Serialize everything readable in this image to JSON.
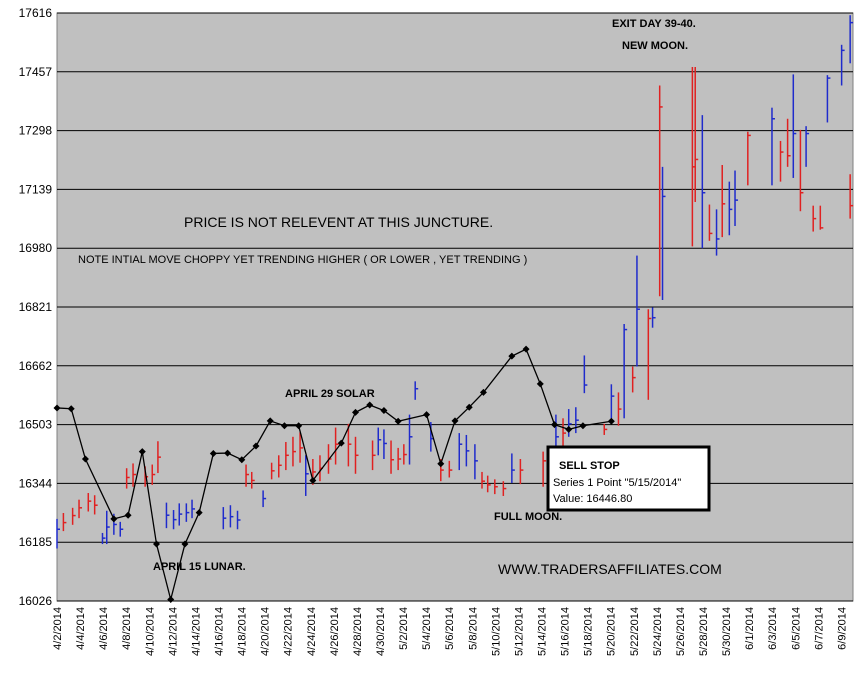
{
  "chart_data": {
    "type": "ohlc",
    "ylim": [
      16026,
      17616
    ],
    "y_ticks": [
      16026,
      16185,
      16344,
      16503,
      16662,
      16821,
      16980,
      17139,
      17298,
      17457,
      17616
    ],
    "categories": [
      "4/2/2014",
      "4/3/2014",
      "4/4/2014",
      "4/5/2014",
      "4/6/2014",
      "4/7/2014",
      "4/8/2014",
      "4/9/2014",
      "4/10/2014",
      "4/11/2014",
      "4/12/2014",
      "4/13/2014",
      "4/14/2014",
      "4/15/2014",
      "4/16/2014",
      "4/17/2014",
      "4/18/2014",
      "4/19/2014",
      "4/20/2014",
      "4/21/2014",
      "4/22/2014",
      "4/23/2014",
      "4/24/2014",
      "4/25/2014",
      "4/26/2014",
      "4/27/2014",
      "4/28/2014",
      "4/29/2014",
      "4/30/2014",
      "5/1/2014",
      "5/2/2014",
      "5/3/2014",
      "5/4/2014",
      "5/5/2014",
      "5/6/2014",
      "5/7/2014",
      "5/8/2014",
      "5/9/2014",
      "5/10/2014",
      "5/11/2014",
      "5/12/2014",
      "5/13/2014",
      "5/14/2014",
      "5/15/2014",
      "5/16/2014",
      "5/17/2014",
      "5/18/2014",
      "5/19/2014",
      "5/20/2014",
      "5/21/2014",
      "5/22/2014",
      "5/23/2014",
      "5/24/2014",
      "5/25/2014",
      "5/26/2014",
      "5/27/2014",
      "5/28/2014",
      "5/29/2014",
      "5/30/2014",
      "5/31/2014",
      "6/1/2014",
      "6/2/2014",
      "6/3/2014",
      "6/4/2014",
      "6/5/2014",
      "6/6/2014",
      "6/7/2014",
      "6/8/2014",
      "6/9/2014",
      "6/10/2014"
    ],
    "x_label_step": 2,
    "series": [
      {
        "name": "Series 1",
        "style": "line-markers",
        "color": "#000000",
        "points": [
          {
            "x": 0,
            "y": 16548
          },
          {
            "x": 1,
            "y": 16546
          },
          {
            "x": 2,
            "y": 16410
          },
          {
            "x": 4,
            "y": 16248
          },
          {
            "x": 5,
            "y": 16258
          },
          {
            "x": 6,
            "y": 16430
          },
          {
            "x": 7,
            "y": 16180
          },
          {
            "x": 8,
            "y": 16030
          },
          {
            "x": 9,
            "y": 16180
          },
          {
            "x": 10,
            "y": 16265
          },
          {
            "x": 11,
            "y": 16425
          },
          {
            "x": 12,
            "y": 16426
          },
          {
            "x": 13,
            "y": 16408
          },
          {
            "x": 14,
            "y": 16445
          },
          {
            "x": 15,
            "y": 16513
          },
          {
            "x": 16,
            "y": 16500
          },
          {
            "x": 17,
            "y": 16500
          },
          {
            "x": 18,
            "y": 16352
          },
          {
            "x": 20,
            "y": 16453
          },
          {
            "x": 21,
            "y": 16536
          },
          {
            "x": 22,
            "y": 16556
          },
          {
            "x": 23,
            "y": 16541
          },
          {
            "x": 24,
            "y": 16512
          },
          {
            "x": 26,
            "y": 16530
          },
          {
            "x": 27,
            "y": 16397
          },
          {
            "x": 28,
            "y": 16513
          },
          {
            "x": 29,
            "y": 16550
          },
          {
            "x": 30,
            "y": 16590
          },
          {
            "x": 32,
            "y": 16688
          },
          {
            "x": 33,
            "y": 16707
          },
          {
            "x": 34,
            "y": 16613
          },
          {
            "x": 35,
            "y": 16503
          },
          {
            "x": 36,
            "y": 16490
          },
          {
            "x": 37,
            "y": 16500
          },
          {
            "x": 39,
            "y": 16512
          }
        ]
      }
    ],
    "ohlc_bars": [
      {
        "x": 0,
        "low": 16168,
        "high": 16248,
        "close": 16220,
        "color": "blue"
      },
      {
        "x": 0.45,
        "low": 16215,
        "high": 16264,
        "close": 16238,
        "color": "red"
      },
      {
        "x": 1.1,
        "low": 16232,
        "high": 16278,
        "close": 16257,
        "color": "red"
      },
      {
        "x": 1.55,
        "low": 16250,
        "high": 16300,
        "close": 16278,
        "color": "red"
      },
      {
        "x": 2.2,
        "low": 16268,
        "high": 16318,
        "close": 16296,
        "color": "red"
      },
      {
        "x": 2.65,
        "low": 16260,
        "high": 16312,
        "close": 16285,
        "color": "red"
      },
      {
        "x": 3.2,
        "low": 16180,
        "high": 16210,
        "close": 16196,
        "color": "blue"
      },
      {
        "x": 3.5,
        "low": 16180,
        "high": 16270,
        "close": 16226,
        "color": "blue"
      },
      {
        "x": 4.0,
        "low": 16205,
        "high": 16262,
        "close": 16233,
        "color": "blue"
      },
      {
        "x": 4.45,
        "low": 16200,
        "high": 16240,
        "close": 16220,
        "color": "blue"
      },
      {
        "x": 4.9,
        "low": 16330,
        "high": 16385,
        "close": 16360,
        "color": "red"
      },
      {
        "x": 5.35,
        "low": 16335,
        "high": 16398,
        "close": 16368,
        "color": "red"
      },
      {
        "x": 6.2,
        "low": 16335,
        "high": 16390,
        "close": 16362,
        "color": "red"
      },
      {
        "x": 6.7,
        "low": 16340,
        "high": 16395,
        "close": 16368,
        "color": "red"
      },
      {
        "x": 7.1,
        "low": 16372,
        "high": 16458,
        "close": 16415,
        "color": "red"
      },
      {
        "x": 7.7,
        "low": 16223,
        "high": 16292,
        "close": 16258,
        "color": "blue"
      },
      {
        "x": 8.2,
        "low": 16220,
        "high": 16272,
        "close": 16246,
        "color": "blue"
      },
      {
        "x": 8.6,
        "low": 16230,
        "high": 16290,
        "close": 16261,
        "color": "blue"
      },
      {
        "x": 9.1,
        "low": 16240,
        "high": 16290,
        "close": 16265,
        "color": "blue"
      },
      {
        "x": 9.5,
        "low": 16250,
        "high": 16300,
        "close": 16275,
        "color": "blue"
      },
      {
        "x": 11.7,
        "low": 16220,
        "high": 16280,
        "close": 16250,
        "color": "blue"
      },
      {
        "x": 12.2,
        "low": 16225,
        "high": 16285,
        "close": 16254,
        "color": "blue"
      },
      {
        "x": 12.7,
        "low": 16220,
        "high": 16270,
        "close": 16245,
        "color": "blue"
      },
      {
        "x": 13.3,
        "low": 16335,
        "high": 16395,
        "close": 16368,
        "color": "red"
      },
      {
        "x": 13.7,
        "low": 16330,
        "high": 16375,
        "close": 16352,
        "color": "red"
      },
      {
        "x": 14.5,
        "low": 16280,
        "high": 16325,
        "close": 16303,
        "color": "blue"
      },
      {
        "x": 15.1,
        "low": 16355,
        "high": 16400,
        "close": 16378,
        "color": "red"
      },
      {
        "x": 15.6,
        "low": 16360,
        "high": 16420,
        "close": 16393,
        "color": "red"
      },
      {
        "x": 16.1,
        "low": 16380,
        "high": 16456,
        "close": 16420,
        "color": "red"
      },
      {
        "x": 16.6,
        "low": 16390,
        "high": 16470,
        "close": 16430,
        "color": "red"
      },
      {
        "x": 17.1,
        "low": 16400,
        "high": 16482,
        "close": 16440,
        "color": "red"
      },
      {
        "x": 17.5,
        "low": 16310,
        "high": 16420,
        "close": 16370,
        "color": "blue"
      },
      {
        "x": 18.0,
        "low": 16340,
        "high": 16410,
        "close": 16375,
        "color": "red"
      },
      {
        "x": 18.5,
        "low": 16350,
        "high": 16420,
        "close": 16385,
        "color": "red"
      },
      {
        "x": 19.1,
        "low": 16370,
        "high": 16450,
        "close": 16410,
        "color": "red"
      },
      {
        "x": 19.6,
        "low": 16395,
        "high": 16495,
        "close": 16450,
        "color": "red"
      },
      {
        "x": 20.5,
        "low": 16390,
        "high": 16505,
        "close": 16450,
        "color": "red"
      },
      {
        "x": 21.0,
        "low": 16370,
        "high": 16470,
        "close": 16420,
        "color": "red"
      },
      {
        "x": 22.2,
        "low": 16380,
        "high": 16460,
        "close": 16420,
        "color": "red"
      },
      {
        "x": 22.6,
        "low": 16420,
        "high": 16495,
        "close": 16462,
        "color": "blue"
      },
      {
        "x": 23.0,
        "low": 16410,
        "high": 16490,
        "close": 16452,
        "color": "blue"
      },
      {
        "x": 23.5,
        "low": 16370,
        "high": 16460,
        "close": 16408,
        "color": "red"
      },
      {
        "x": 24.0,
        "low": 16380,
        "high": 16440,
        "close": 16410,
        "color": "red"
      },
      {
        "x": 24.4,
        "low": 16395,
        "high": 16450,
        "close": 16422,
        "color": "red"
      },
      {
        "x": 24.8,
        "low": 16395,
        "high": 16530,
        "close": 16470,
        "color": "blue"
      },
      {
        "x": 25.2,
        "low": 16570,
        "high": 16620,
        "close": 16600,
        "color": "blue"
      },
      {
        "x": 26.3,
        "low": 16430,
        "high": 16510,
        "close": 16465,
        "color": "blue"
      },
      {
        "x": 27.0,
        "low": 16350,
        "high": 16410,
        "close": 16380,
        "color": "red"
      },
      {
        "x": 27.6,
        "low": 16360,
        "high": 16405,
        "close": 16380,
        "color": "red"
      },
      {
        "x": 28.3,
        "low": 16380,
        "high": 16480,
        "close": 16450,
        "color": "blue"
      },
      {
        "x": 28.8,
        "low": 16390,
        "high": 16475,
        "close": 16432,
        "color": "blue"
      },
      {
        "x": 29.4,
        "low": 16355,
        "high": 16450,
        "close": 16405,
        "color": "blue"
      },
      {
        "x": 29.9,
        "low": 16330,
        "high": 16375,
        "close": 16350,
        "color": "red"
      },
      {
        "x": 30.3,
        "low": 16320,
        "high": 16365,
        "close": 16340,
        "color": "red"
      },
      {
        "x": 30.8,
        "low": 16315,
        "high": 16355,
        "close": 16335,
        "color": "red"
      },
      {
        "x": 31.4,
        "low": 16310,
        "high": 16350,
        "close": 16330,
        "color": "red"
      },
      {
        "x": 32.0,
        "low": 16345,
        "high": 16425,
        "close": 16380,
        "color": "blue"
      },
      {
        "x": 32.6,
        "low": 16342,
        "high": 16410,
        "close": 16380,
        "color": "red"
      },
      {
        "x": 34.2,
        "low": 16335,
        "high": 16430,
        "close": 16405,
        "color": "red"
      },
      {
        "x": 34.7,
        "low": 16380,
        "high": 16440,
        "close": 16410,
        "color": "red"
      },
      {
        "x": 35.1,
        "low": 16400,
        "high": 16530,
        "close": 16470,
        "color": "blue"
      },
      {
        "x": 35.6,
        "low": 16440,
        "high": 16520,
        "close": 16480,
        "color": "red"
      },
      {
        "x": 36.0,
        "low": 16470,
        "high": 16545,
        "close": 16505,
        "color": "blue"
      },
      {
        "x": 36.5,
        "low": 16480,
        "high": 16550,
        "close": 16515,
        "color": "blue"
      },
      {
        "x": 37.1,
        "low": 16588,
        "high": 16690,
        "close": 16610,
        "color": "blue"
      },
      {
        "x": 38.5,
        "low": 16475,
        "high": 16505,
        "close": 16490,
        "color": "red"
      },
      {
        "x": 39.0,
        "low": 16520,
        "high": 16612,
        "close": 16580,
        "color": "blue"
      },
      {
        "x": 39.5,
        "low": 16500,
        "high": 16590,
        "close": 16545,
        "color": "red"
      },
      {
        "x": 39.9,
        "low": 16520,
        "high": 16775,
        "close": 16760,
        "color": "blue"
      },
      {
        "x": 40.5,
        "low": 16590,
        "high": 16660,
        "close": 16630,
        "color": "red"
      },
      {
        "x": 40.8,
        "low": 16660,
        "high": 16960,
        "close": 16815,
        "color": "blue"
      },
      {
        "x": 41.6,
        "low": 16570,
        "high": 16815,
        "close": 16790,
        "color": "red"
      },
      {
        "x": 41.9,
        "low": 16765,
        "high": 16820,
        "close": 16792,
        "color": "blue"
      },
      {
        "x": 42.4,
        "low": 16850,
        "high": 17420,
        "close": 17362,
        "color": "red"
      },
      {
        "x": 42.6,
        "low": 16840,
        "high": 17200,
        "close": 17120,
        "color": "blue"
      },
      {
        "x": 44.7,
        "low": 16985,
        "high": 17470,
        "close": 17200,
        "color": "red"
      },
      {
        "x": 44.9,
        "low": 17105,
        "high": 17470,
        "close": 17220,
        "color": "red"
      },
      {
        "x": 45.4,
        "low": 16980,
        "high": 17340,
        "close": 17130,
        "color": "blue"
      },
      {
        "x": 45.9,
        "low": 17000,
        "high": 17098,
        "close": 17020,
        "color": "red"
      },
      {
        "x": 46.4,
        "low": 16960,
        "high": 17085,
        "close": 17005,
        "color": "blue"
      },
      {
        "x": 46.8,
        "low": 17010,
        "high": 17205,
        "close": 17100,
        "color": "red"
      },
      {
        "x": 47.3,
        "low": 17015,
        "high": 17160,
        "close": 17085,
        "color": "blue"
      },
      {
        "x": 47.7,
        "low": 17040,
        "high": 17190,
        "close": 17110,
        "color": "blue"
      },
      {
        "x": 48.6,
        "low": 17150,
        "high": 17295,
        "close": 17285,
        "color": "red"
      },
      {
        "x": 50.3,
        "low": 17150,
        "high": 17360,
        "close": 17330,
        "color": "blue"
      },
      {
        "x": 50.9,
        "low": 17160,
        "high": 17270,
        "close": 17240,
        "color": "red"
      },
      {
        "x": 51.4,
        "low": 17200,
        "high": 17330,
        "close": 17230,
        "color": "red"
      },
      {
        "x": 51.8,
        "low": 17170,
        "high": 17450,
        "close": 17290,
        "color": "blue"
      },
      {
        "x": 52.3,
        "low": 17080,
        "high": 17300,
        "close": 17130,
        "color": "red"
      },
      {
        "x": 52.7,
        "low": 17200,
        "high": 17310,
        "close": 17290,
        "color": "blue"
      },
      {
        "x": 53.2,
        "low": 17025,
        "high": 17095,
        "close": 17060,
        "color": "red"
      },
      {
        "x": 53.7,
        "low": 17030,
        "high": 17095,
        "close": 17035,
        "color": "red"
      },
      {
        "x": 54.2,
        "low": 17320,
        "high": 17448,
        "close": 17440,
        "color": "blue"
      },
      {
        "x": 55.2,
        "low": 17420,
        "high": 17530,
        "close": 17515,
        "color": "blue"
      },
      {
        "x": 55.8,
        "low": 17480,
        "high": 17610,
        "close": 17590,
        "color": "blue"
      },
      {
        "x": 55.8,
        "low": 17060,
        "high": 17180,
        "close": 17095,
        "color": "red"
      }
    ],
    "x_range": [
      0,
      56
    ],
    "grid": "horizontal",
    "background_color": "#c0c0c0",
    "up_color": "#1f2bcc",
    "down_color": "#e02121",
    "annotations": [
      {
        "id": "exit",
        "text": "EXIT DAY 39-40."
      },
      {
        "id": "newmoon",
        "text": "NEW MOON."
      },
      {
        "id": "price",
        "text": "PRICE IS NOT RELEVENT AT THIS JUNCTURE."
      },
      {
        "id": "note",
        "text": "NOTE INTIAL MOVE CHOPPY YET TRENDING HIGHER ( OR LOWER , YET TRENDING )"
      },
      {
        "id": "april29",
        "text": "APRIL 29 SOLAR"
      },
      {
        "id": "fullmoon",
        "text": "FULL MOON."
      },
      {
        "id": "april15",
        "text": "APRIL 15 LUNAR."
      },
      {
        "id": "website",
        "text": "WWW.TRADERSAFFILIATES.COM"
      }
    ],
    "tooltip": {
      "title": "SELL STOP",
      "line1": "Series 1 Point \"5/15/2014\"",
      "line2": "Value: 16446.80"
    }
  }
}
